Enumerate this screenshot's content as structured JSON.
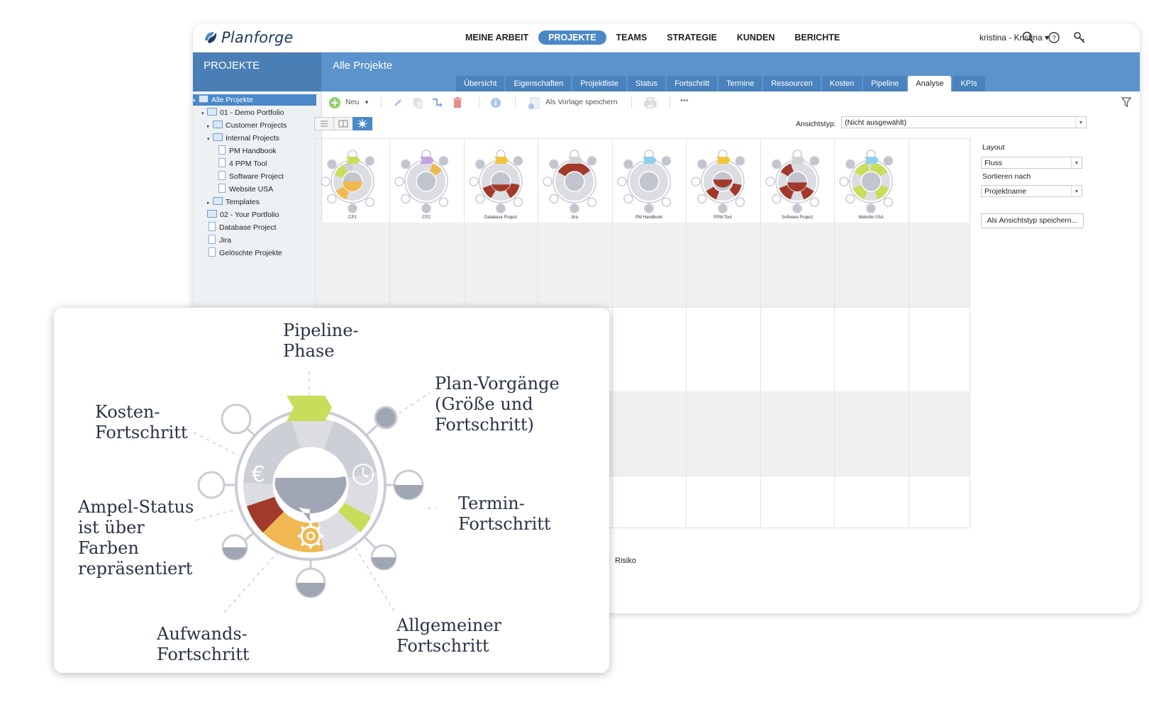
{
  "app": {
    "brand": "Planforge",
    "nav": [
      "MEINE ARBEIT",
      "PROJEKTE",
      "TEAMS",
      "STRATEGIE",
      "KUNDEN",
      "BERICHTE"
    ],
    "nav_active": "PROJEKTE",
    "user": "kristina - Kristina ▾",
    "icons": [
      "search-icon",
      "help-icon",
      "key-icon"
    ]
  },
  "sidebar": {
    "title": "PROJEKTE",
    "tree": [
      {
        "label": "Alle Projekte",
        "selected": true
      },
      {
        "label": "01 - Demo Portfolio"
      },
      {
        "label": "Customer Projects"
      },
      {
        "label": "Internal Projects"
      },
      {
        "label": "PM Handbook"
      },
      {
        "label": "4 PPM Tool"
      },
      {
        "label": "Software Project"
      },
      {
        "label": "Website USA"
      },
      {
        "label": "Templates"
      },
      {
        "label": "02 - Your Portfolio"
      },
      {
        "label": "Database Project"
      },
      {
        "label": "Jira"
      },
      {
        "label": "Gelöschte Projekte"
      }
    ]
  },
  "main": {
    "title": "Alle Projekte",
    "tabs": [
      "Übersicht",
      "Eigenschaften",
      "Projektliste",
      "Status",
      "Fortschritt",
      "Termine",
      "Ressourcen",
      "Kosten",
      "Pipeline",
      "Analyse",
      "KPIs"
    ],
    "active_tab": "Analyse"
  },
  "toolbar": {
    "new_label": "Neu",
    "template_label": "Als Vorlage speichern",
    "more": "•••"
  },
  "view": {
    "type_label": "Ansichtstyp:",
    "type_value": "(Nicht ausgewählt)"
  },
  "projects": [
    {
      "name": "CP1",
      "phase_color": "#c8de5a"
    },
    {
      "name": "CP2",
      "phase_color": "#c5a3e0"
    },
    {
      "name": "Database Project",
      "phase_color": "#f2c63c"
    },
    {
      "name": "Jira",
      "phase_color": "#d3d3d3"
    },
    {
      "name": "PM Handbook",
      "phase_color": "#8fd0ee"
    },
    {
      "name": "PPM Tool",
      "phase_color": "#f2c63c"
    },
    {
      "name": "Software Project",
      "phase_color": "#d3d3d3"
    },
    {
      "name": "Website USA",
      "phase_color": "#8fd0ee"
    }
  ],
  "right_panel": {
    "layout_label": "Layout",
    "layout_value": "Fluss",
    "sort_label": "Sortieren nach",
    "sort_value": "Projektname",
    "save_view_label": "Als Ansichtstyp speichern..."
  },
  "risk_label": "Risiko",
  "legend": {
    "pipeline": [
      "Pipeline-",
      "Phase"
    ],
    "plan": [
      "Plan-Vorgänge",
      "(Größe und",
      "Fortschritt)"
    ],
    "kosten": [
      "Kosten-",
      "Fortschritt"
    ],
    "termin": [
      "Termin-",
      "Fortschritt"
    ],
    "ampel": [
      "Ampel-Status",
      "ist über",
      "Farben",
      "repräsentiert"
    ],
    "aufwand": [
      "Aufwands-",
      "Fortschritt"
    ],
    "allgemein": [
      "Allgemeiner",
      "Fortschritt"
    ]
  },
  "colors": {
    "header_blue": "#5b93cc",
    "accent_blue": "#4a88c7",
    "red_status": "#a23a2c",
    "orange_status": "#f0b850",
    "green_status": "#c8de5a"
  }
}
